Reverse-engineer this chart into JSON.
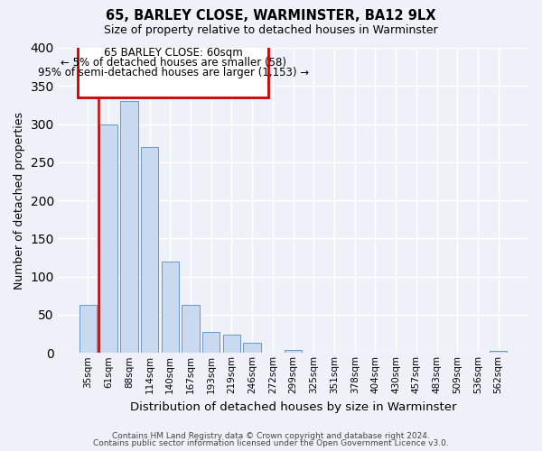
{
  "title": "65, BARLEY CLOSE, WARMINSTER, BA12 9LX",
  "subtitle": "Size of property relative to detached houses in Warminster",
  "xlabel": "Distribution of detached houses by size in Warminster",
  "ylabel": "Number of detached properties",
  "bar_color": "#c8d9f0",
  "bar_edge_color": "#6699cc",
  "categories": [
    "35sqm",
    "61sqm",
    "88sqm",
    "114sqm",
    "140sqm",
    "167sqm",
    "193sqm",
    "219sqm",
    "246sqm",
    "272sqm",
    "299sqm",
    "325sqm",
    "351sqm",
    "378sqm",
    "404sqm",
    "430sqm",
    "457sqm",
    "483sqm",
    "509sqm",
    "536sqm",
    "562sqm"
  ],
  "values": [
    63,
    300,
    330,
    270,
    120,
    63,
    28,
    24,
    13,
    0,
    4,
    0,
    0,
    0,
    0,
    0,
    0,
    0,
    0,
    0,
    3
  ],
  "ylim": [
    0,
    400
  ],
  "yticks": [
    0,
    50,
    100,
    150,
    200,
    250,
    300,
    350,
    400
  ],
  "annotation_title": "65 BARLEY CLOSE: 60sqm",
  "annotation_line1": "← 5% of detached houses are smaller (58)",
  "annotation_line2": "95% of semi-detached houses are larger (1,153) →",
  "vline_position": 0.6,
  "box_color": "#cc0000",
  "footer_line1": "Contains HM Land Registry data © Crown copyright and database right 2024.",
  "footer_line2": "Contains public sector information licensed under the Open Government Licence v3.0.",
  "background_color": "#eef2f8",
  "grid_color": "#ffffff"
}
